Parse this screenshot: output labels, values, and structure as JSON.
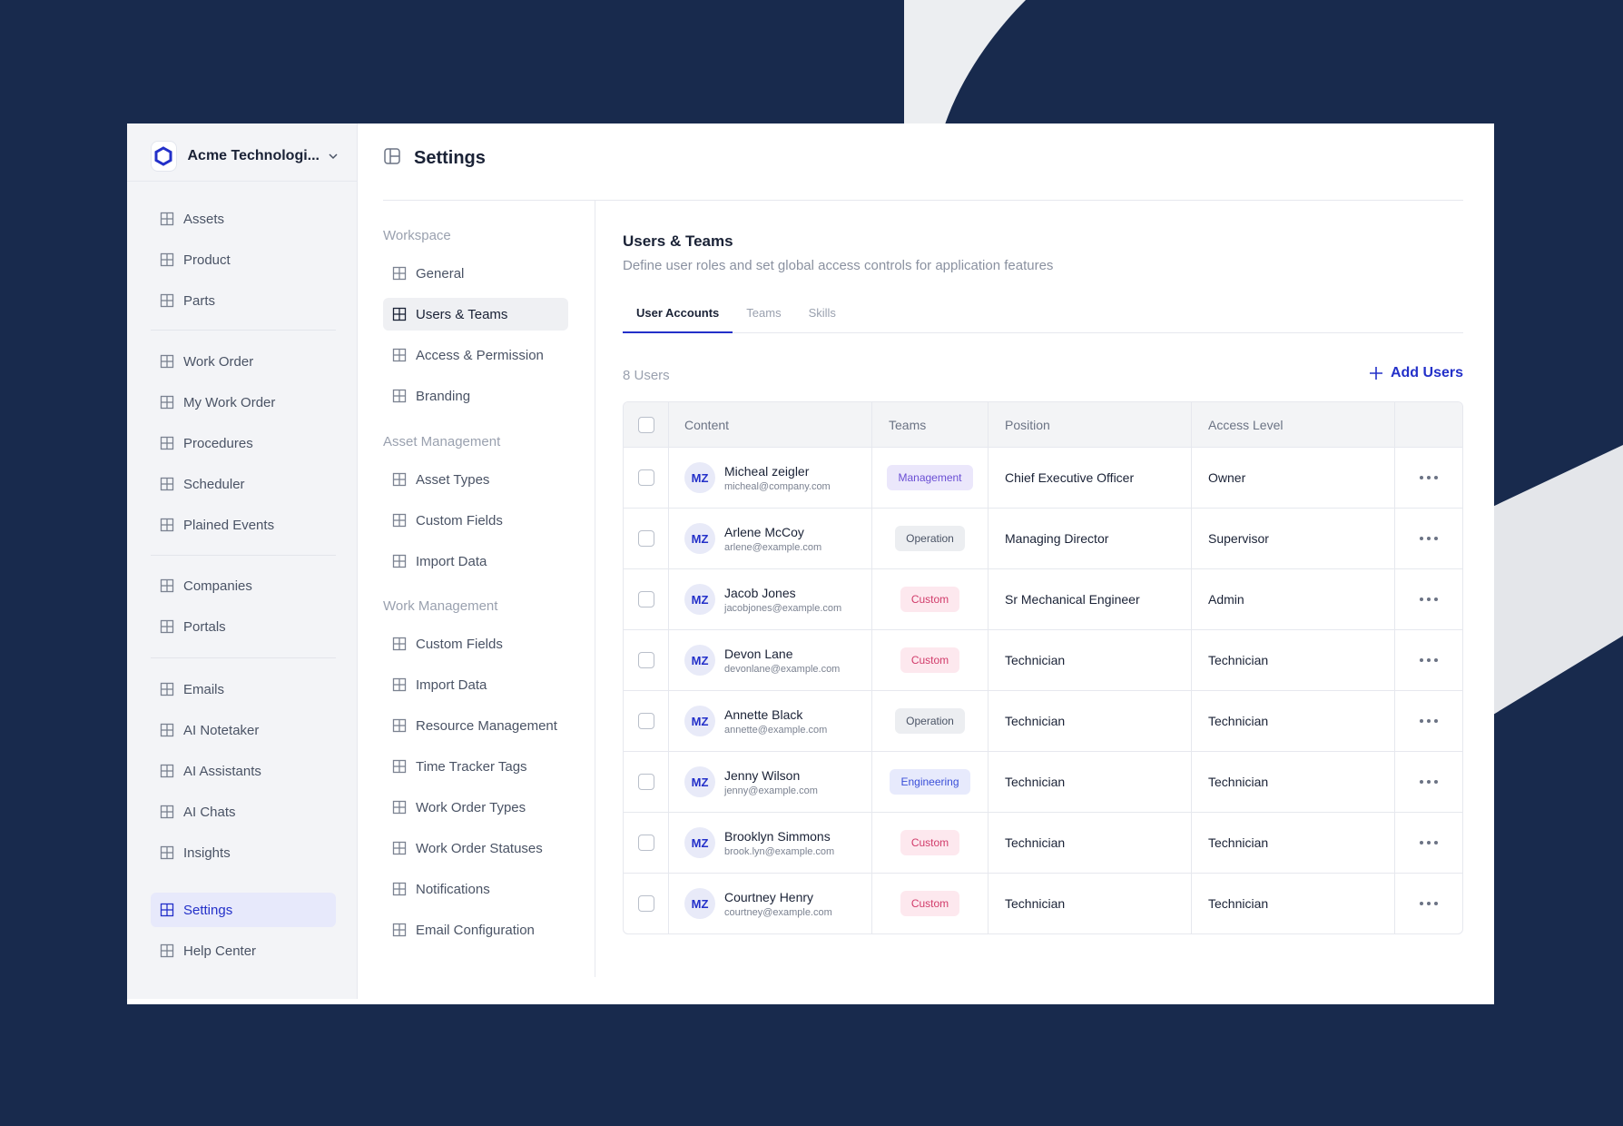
{
  "org": {
    "name": "Acme Technologi..."
  },
  "sidebar": {
    "items": [
      {
        "label": "Assets",
        "icon": "grid-icon"
      },
      {
        "label": "Product",
        "icon": "grid-icon"
      },
      {
        "label": "Parts",
        "icon": "grid-icon"
      },
      {
        "label": "Work Order",
        "icon": "grid-icon"
      },
      {
        "label": "My Work Order",
        "icon": "grid-icon"
      },
      {
        "label": "Procedures",
        "icon": "grid-icon"
      },
      {
        "label": "Scheduler",
        "icon": "grid-icon"
      },
      {
        "label": "Plained Events",
        "icon": "grid-icon"
      },
      {
        "label": "Companies",
        "icon": "grid-icon"
      },
      {
        "label": "Portals",
        "icon": "grid-icon"
      },
      {
        "label": "Emails",
        "icon": "grid-icon"
      },
      {
        "label": "AI Notetaker",
        "icon": "grid-icon"
      },
      {
        "label": "AI Assistants",
        "icon": "grid-icon"
      },
      {
        "label": "AI Chats",
        "icon": "grid-icon"
      },
      {
        "label": "Insights",
        "icon": "grid-icon"
      },
      {
        "label": "Settings",
        "icon": "grid-icon",
        "active": true
      },
      {
        "label": "Help Center",
        "icon": "grid-icon"
      }
    ]
  },
  "settings": {
    "title": "Settings"
  },
  "settings_menu": {
    "workspace_label": "Workspace",
    "workspace": [
      "General",
      "Users & Teams",
      "Access & Permission",
      "Branding"
    ],
    "asset_label": "Asset Management",
    "asset": [
      "Asset Types",
      "Custom Fields",
      "Import Data"
    ],
    "work_label": "Work Management",
    "work": [
      "Custom Fields",
      "Import Data",
      "Resource Management",
      "Time Tracker Tags",
      "Work Order Types",
      "Work Order Statuses",
      "Notifications",
      "Email Configuration"
    ]
  },
  "content": {
    "title": "Users & Teams",
    "description": "Define user roles and set global  access controls for application features",
    "tabs": [
      "User Accounts",
      "Teams",
      "Skills"
    ],
    "count": "8 Users",
    "add_label": "Add Users"
  },
  "table": {
    "headers": [
      "Content",
      "Teams",
      "Position",
      "Access Level"
    ],
    "rows": [
      {
        "initials": "MZ",
        "name": "Micheal zeigler",
        "email": "micheal@company.com",
        "team": "Management",
        "position": "Chief Executive Officer",
        "access": "Owner"
      },
      {
        "initials": "MZ",
        "name": "Arlene McCoy",
        "email": "arlene@example.com",
        "team": "Operation",
        "position": "Managing Director",
        "access": "Supervisor"
      },
      {
        "initials": "MZ",
        "name": "Jacob Jones",
        "email": "jacobjones@example.com",
        "team": "Custom",
        "position": "Sr Mechanical Engineer",
        "access": "Admin"
      },
      {
        "initials": "MZ",
        "name": "Devon Lane",
        "email": "devonlane@example.com",
        "team": "Custom",
        "position": "Technician",
        "access": "Technician"
      },
      {
        "initials": "MZ",
        "name": "Annette Black",
        "email": "annette@example.com",
        "team": "Operation",
        "position": "Technician",
        "access": "Technician"
      },
      {
        "initials": "MZ",
        "name": "Jenny Wilson",
        "email": "jenny@example.com",
        "team": "Engineering",
        "position": "Technician",
        "access": "Technician"
      },
      {
        "initials": "MZ",
        "name": "Brooklyn Simmons",
        "email": "brook.lyn@example.com",
        "team": "Custom",
        "position": "Technician",
        "access": "Technician"
      },
      {
        "initials": "MZ",
        "name": "Courtney Henry",
        "email": "courtney@example.com",
        "team": "Custom",
        "position": "Technician",
        "access": "Technician"
      }
    ]
  },
  "colors": {
    "accent": "#2330c9",
    "background": "#182a4d"
  }
}
